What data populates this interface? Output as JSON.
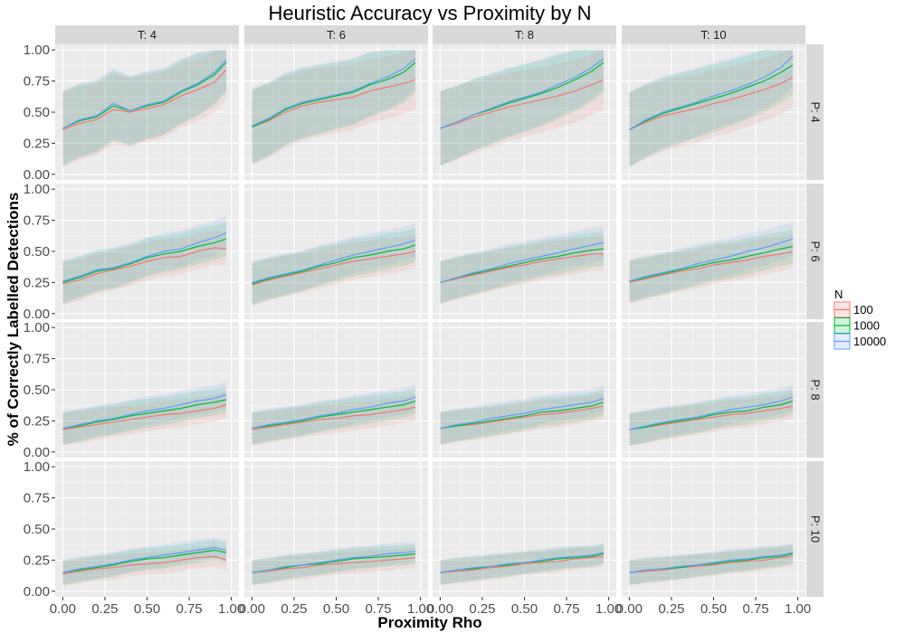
{
  "chart_data": {
    "type": "line",
    "title": "Heuristic Accuracy vs Proximity by N",
    "xlabel": "Proximity Rho",
    "ylabel": "% of Correctly Labelled Detections",
    "xlim": [
      0,
      1
    ],
    "ylim": [
      0,
      1
    ],
    "x_ticks": [
      "0.00",
      "0.25",
      "0.50",
      "0.75",
      "1.00"
    ],
    "y_ticks": [
      "0.00",
      "0.25",
      "0.50",
      "0.75",
      "1.00"
    ],
    "grid": true,
    "legend_placement": "right",
    "legend": {
      "title": "N",
      "entries": [
        {
          "label": "100",
          "color": "#F8766D"
        },
        {
          "label": "1000",
          "color": "#00BA38"
        },
        {
          "label": "10000",
          "color": "#619CFF"
        }
      ]
    },
    "facet_columns": [
      "T: 4",
      "T: 6",
      "T: 8",
      "T: 10"
    ],
    "facet_rows": [
      "P: 4",
      "P: 6",
      "P: 8",
      "P: 10"
    ],
    "x": [
      0,
      0.1,
      0.2,
      0.3,
      0.4,
      0.5,
      0.6,
      0.7,
      0.8,
      0.9,
      0.97
    ],
    "band_halfwidth": [
      0.3,
      0.17,
      0.13,
      0.1
    ],
    "series_note": "panels[row][col] holds mean y for N=100, N=1000, N=10000 at each x",
    "panels": [
      [
        [
          [
            0.36,
            0.41,
            0.44,
            0.52,
            0.5,
            0.53,
            0.56,
            0.63,
            0.68,
            0.74,
            0.84
          ],
          [
            0.37,
            0.43,
            0.46,
            0.55,
            0.51,
            0.55,
            0.58,
            0.66,
            0.72,
            0.8,
            0.9
          ],
          [
            0.37,
            0.44,
            0.47,
            0.57,
            0.51,
            0.56,
            0.59,
            0.67,
            0.73,
            0.82,
            0.92
          ]
        ],
        [
          [
            0.38,
            0.43,
            0.5,
            0.55,
            0.58,
            0.6,
            0.62,
            0.67,
            0.7,
            0.73,
            0.76
          ],
          [
            0.38,
            0.44,
            0.52,
            0.57,
            0.6,
            0.63,
            0.66,
            0.72,
            0.76,
            0.82,
            0.9
          ],
          [
            0.39,
            0.45,
            0.53,
            0.58,
            0.61,
            0.64,
            0.67,
            0.73,
            0.78,
            0.85,
            0.93
          ]
        ],
        [
          [
            0.37,
            0.41,
            0.46,
            0.5,
            0.54,
            0.57,
            0.6,
            0.63,
            0.67,
            0.72,
            0.76
          ],
          [
            0.37,
            0.42,
            0.48,
            0.52,
            0.57,
            0.61,
            0.65,
            0.7,
            0.76,
            0.83,
            0.9
          ],
          [
            0.37,
            0.42,
            0.48,
            0.53,
            0.58,
            0.62,
            0.66,
            0.72,
            0.78,
            0.86,
            0.93
          ]
        ],
        [
          [
            0.36,
            0.42,
            0.47,
            0.5,
            0.53,
            0.57,
            0.6,
            0.64,
            0.68,
            0.73,
            0.78
          ],
          [
            0.36,
            0.43,
            0.49,
            0.53,
            0.57,
            0.61,
            0.65,
            0.7,
            0.75,
            0.82,
            0.88
          ],
          [
            0.36,
            0.44,
            0.5,
            0.54,
            0.58,
            0.63,
            0.67,
            0.72,
            0.78,
            0.86,
            0.95
          ]
        ]
      ],
      [
        [
          [
            0.24,
            0.27,
            0.32,
            0.35,
            0.38,
            0.42,
            0.45,
            0.46,
            0.5,
            0.53,
            0.52
          ],
          [
            0.25,
            0.29,
            0.34,
            0.36,
            0.4,
            0.45,
            0.48,
            0.5,
            0.54,
            0.57,
            0.6
          ],
          [
            0.26,
            0.3,
            0.35,
            0.37,
            0.41,
            0.46,
            0.5,
            0.52,
            0.57,
            0.61,
            0.65
          ]
        ],
        [
          [
            0.23,
            0.27,
            0.3,
            0.33,
            0.36,
            0.39,
            0.42,
            0.44,
            0.46,
            0.48,
            0.5
          ],
          [
            0.24,
            0.28,
            0.31,
            0.34,
            0.38,
            0.41,
            0.45,
            0.47,
            0.5,
            0.52,
            0.55
          ],
          [
            0.25,
            0.29,
            0.32,
            0.35,
            0.39,
            0.43,
            0.47,
            0.5,
            0.53,
            0.56,
            0.59
          ]
        ],
        [
          [
            0.25,
            0.28,
            0.31,
            0.34,
            0.37,
            0.39,
            0.42,
            0.44,
            0.46,
            0.48,
            0.48
          ],
          [
            0.25,
            0.29,
            0.32,
            0.35,
            0.38,
            0.41,
            0.44,
            0.46,
            0.49,
            0.51,
            0.52
          ],
          [
            0.25,
            0.29,
            0.33,
            0.36,
            0.4,
            0.43,
            0.46,
            0.49,
            0.52,
            0.55,
            0.57
          ]
        ],
        [
          [
            0.25,
            0.28,
            0.31,
            0.34,
            0.36,
            0.39,
            0.41,
            0.43,
            0.46,
            0.48,
            0.5
          ],
          [
            0.26,
            0.29,
            0.32,
            0.35,
            0.38,
            0.41,
            0.43,
            0.46,
            0.49,
            0.52,
            0.54
          ],
          [
            0.26,
            0.3,
            0.33,
            0.36,
            0.4,
            0.43,
            0.46,
            0.5,
            0.53,
            0.57,
            0.6
          ]
        ]
      ],
      [
        [
          [
            0.18,
            0.2,
            0.22,
            0.24,
            0.26,
            0.28,
            0.3,
            0.31,
            0.33,
            0.35,
            0.38
          ],
          [
            0.19,
            0.21,
            0.24,
            0.26,
            0.29,
            0.31,
            0.33,
            0.35,
            0.38,
            0.4,
            0.42
          ],
          [
            0.19,
            0.22,
            0.25,
            0.27,
            0.3,
            0.33,
            0.35,
            0.38,
            0.41,
            0.43,
            0.46
          ]
        ],
        [
          [
            0.18,
            0.2,
            0.22,
            0.24,
            0.26,
            0.27,
            0.29,
            0.3,
            0.32,
            0.34,
            0.36
          ],
          [
            0.19,
            0.21,
            0.23,
            0.25,
            0.28,
            0.3,
            0.32,
            0.34,
            0.36,
            0.38,
            0.41
          ],
          [
            0.19,
            0.22,
            0.24,
            0.26,
            0.29,
            0.31,
            0.34,
            0.36,
            0.39,
            0.41,
            0.44
          ]
        ],
        [
          [
            0.19,
            0.21,
            0.22,
            0.24,
            0.26,
            0.28,
            0.3,
            0.31,
            0.33,
            0.35,
            0.37
          ],
          [
            0.19,
            0.21,
            0.23,
            0.25,
            0.27,
            0.29,
            0.32,
            0.33,
            0.35,
            0.37,
            0.4
          ],
          [
            0.19,
            0.22,
            0.24,
            0.27,
            0.29,
            0.31,
            0.34,
            0.36,
            0.38,
            0.4,
            0.43
          ]
        ],
        [
          [
            0.18,
            0.2,
            0.22,
            0.24,
            0.26,
            0.28,
            0.3,
            0.31,
            0.33,
            0.35,
            0.37
          ],
          [
            0.18,
            0.2,
            0.23,
            0.25,
            0.27,
            0.3,
            0.32,
            0.33,
            0.36,
            0.38,
            0.41
          ],
          [
            0.18,
            0.21,
            0.24,
            0.26,
            0.28,
            0.31,
            0.34,
            0.36,
            0.38,
            0.41,
            0.44
          ]
        ]
      ],
      [
        [
          [
            0.14,
            0.16,
            0.18,
            0.19,
            0.21,
            0.22,
            0.23,
            0.25,
            0.27,
            0.28,
            0.25
          ],
          [
            0.15,
            0.17,
            0.19,
            0.21,
            0.24,
            0.26,
            0.27,
            0.29,
            0.31,
            0.33,
            0.31
          ],
          [
            0.15,
            0.18,
            0.2,
            0.22,
            0.25,
            0.27,
            0.29,
            0.31,
            0.33,
            0.35,
            0.33
          ]
        ],
        [
          [
            0.15,
            0.16,
            0.18,
            0.19,
            0.21,
            0.22,
            0.23,
            0.24,
            0.25,
            0.26,
            0.27
          ],
          [
            0.15,
            0.17,
            0.19,
            0.21,
            0.22,
            0.24,
            0.26,
            0.27,
            0.28,
            0.29,
            0.3
          ],
          [
            0.15,
            0.17,
            0.2,
            0.21,
            0.23,
            0.25,
            0.27,
            0.28,
            0.3,
            0.31,
            0.32
          ]
        ],
        [
          [
            0.15,
            0.16,
            0.17,
            0.19,
            0.2,
            0.22,
            0.23,
            0.24,
            0.26,
            0.27,
            0.28
          ],
          [
            0.15,
            0.17,
            0.18,
            0.2,
            0.21,
            0.23,
            0.24,
            0.26,
            0.27,
            0.28,
            0.3
          ],
          [
            0.15,
            0.17,
            0.19,
            0.2,
            0.22,
            0.23,
            0.25,
            0.27,
            0.28,
            0.29,
            0.31
          ]
        ],
        [
          [
            0.15,
            0.16,
            0.17,
            0.19,
            0.2,
            0.21,
            0.23,
            0.24,
            0.25,
            0.27,
            0.28
          ],
          [
            0.15,
            0.17,
            0.18,
            0.19,
            0.21,
            0.22,
            0.24,
            0.25,
            0.27,
            0.28,
            0.3
          ],
          [
            0.15,
            0.17,
            0.18,
            0.2,
            0.21,
            0.23,
            0.25,
            0.26,
            0.28,
            0.29,
            0.31
          ]
        ]
      ]
    ]
  }
}
